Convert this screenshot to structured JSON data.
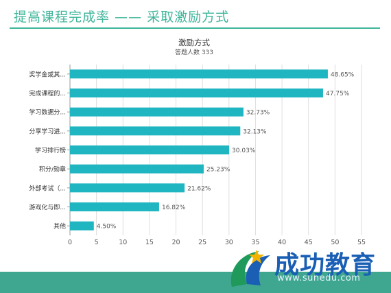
{
  "slide": {
    "title_main": "提高课程完成率",
    "title_sep": " —— ",
    "title_sub": "采取激励方式"
  },
  "colors": {
    "accent": "#3fb59a",
    "bar": "#1fb6c1",
    "footer": "#3fa690"
  },
  "chart_data": {
    "type": "bar",
    "orientation": "horizontal",
    "title": "激励方式",
    "subtitle": "答题人数 333",
    "categories": [
      "奖学金或其...",
      "完成课程的...",
      "学习数据分...",
      "分享学习进...",
      "学习排行榜",
      "积分/勋章",
      "外部考试（...",
      "游戏化与即...",
      "其他"
    ],
    "values": [
      48.65,
      47.75,
      32.73,
      32.13,
      30.03,
      25.23,
      21.62,
      16.82,
      4.5
    ],
    "data_labels": [
      "48.65%",
      "47.75%",
      "32.73%",
      "32.13%",
      "30.03%",
      "25.23%",
      "21.62%",
      "16.82%",
      "4.50%"
    ],
    "xticks": [
      0,
      5,
      10,
      15,
      20,
      25,
      30,
      35,
      40,
      45,
      50,
      55
    ],
    "xlim": [
      0,
      55
    ],
    "grid": true,
    "legend": "none"
  },
  "watermark": {
    "logo_text": "成功教育",
    "url": "www.sunedu.com"
  }
}
